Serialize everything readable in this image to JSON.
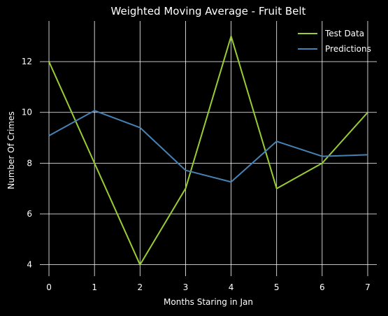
{
  "chart_data": {
    "type": "line",
    "title": "Weighted Moving Average - Fruit Belt",
    "xlabel": "Months Staring in Jan",
    "ylabel": "Number Of Crimes",
    "x": [
      0,
      1,
      2,
      3,
      4,
      5,
      6,
      7
    ],
    "xticks": [
      0,
      1,
      2,
      3,
      4,
      5,
      6,
      7
    ],
    "yticks": [
      4,
      6,
      8,
      10,
      12
    ],
    "xlim": [
      -0.2,
      7.2
    ],
    "ylim": [
      3.55,
      13.6
    ],
    "grid": true,
    "legend_position": "top-right",
    "series": [
      {
        "name": "Test Data",
        "color": "#9acd32",
        "values": [
          12,
          8,
          4,
          7,
          13,
          7,
          8,
          10
        ]
      },
      {
        "name": "Predictions",
        "color": "#4682b4",
        "values": [
          9.08,
          10.07,
          9.4,
          7.72,
          7.26,
          8.86,
          8.27,
          8.33
        ]
      }
    ]
  }
}
